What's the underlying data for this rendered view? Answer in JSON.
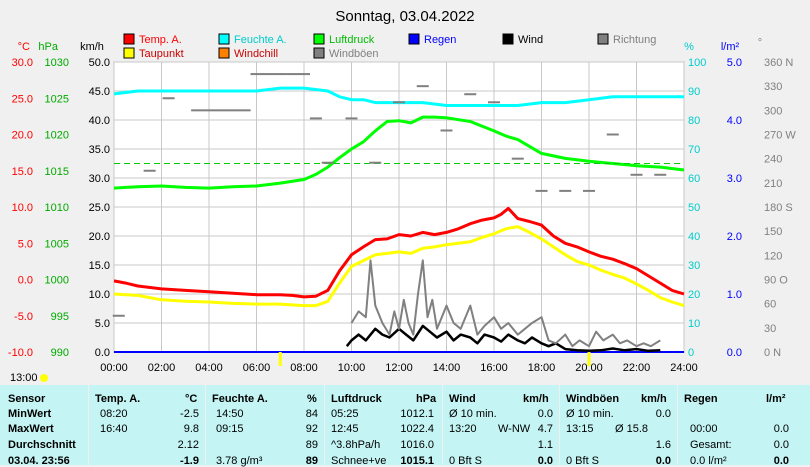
{
  "title": "Sonntag, 03.04.2022",
  "legend": [
    {
      "label": "Temp. A.",
      "color": "#ff0000"
    },
    {
      "label": "Feuchte A.",
      "color": "#00ffff"
    },
    {
      "label": "Luftdruck",
      "color": "#00ff00"
    },
    {
      "label": "Regen",
      "color": "#0000ff"
    },
    {
      "label": "Wind",
      "color": "#000000"
    },
    {
      "label": "Richtung",
      "color": "#808080"
    },
    {
      "label": "Taupunkt",
      "color": "#ffff00"
    },
    {
      "label": "Windchill",
      "color": "#ff8000"
    },
    {
      "label": "Windböen",
      "color": "#808080"
    }
  ],
  "axes": {
    "temp": {
      "unit": "°C",
      "ticks": [
        "30.0",
        "25.0",
        "20.0",
        "15.0",
        "10.0",
        "5.0",
        "0.0",
        "-5.0",
        "-10.0"
      ],
      "color": "#ff0000"
    },
    "pressure": {
      "unit": "hPa",
      "ticks": [
        "1030",
        "1025",
        "1020",
        "1015",
        "1010",
        "1005",
        "1000",
        "995",
        "990"
      ],
      "color": "#00aa00"
    },
    "wind": {
      "unit": "km/h",
      "ticks": [
        "50.0",
        "45.0",
        "40.0",
        "35.0",
        "30.0",
        "25.0",
        "20.0",
        "15.0",
        "10.0",
        "5.0",
        "0.0"
      ],
      "color": "#000000"
    },
    "humidity": {
      "unit": "%",
      "ticks": [
        "100",
        "90",
        "80",
        "70",
        "60",
        "50",
        "40",
        "30",
        "20",
        "10",
        "0"
      ],
      "color": "#00cccc"
    },
    "rain": {
      "unit": "l/m²",
      "ticks": [
        "5.0",
        "4.0",
        "3.0",
        "2.0",
        "1.0",
        "0.0"
      ],
      "color": "#0000ff"
    },
    "direction": {
      "unit": "°",
      "ticks": [
        "360 N",
        "330",
        "300",
        "270 W",
        "240",
        "210",
        "180 S",
        "150",
        "120",
        "90 O",
        "60",
        "30",
        "0 N"
      ],
      "color": "#808080"
    },
    "time": [
      "00:00",
      "02:00",
      "04:00",
      "06:00",
      "08:00",
      "10:00",
      "12:00",
      "14:00",
      "16:00",
      "18:00",
      "20:00",
      "22:00",
      "24:00"
    ]
  },
  "sun_marker": "13:00",
  "chart_data": {
    "type": "line",
    "title": "Sonntag, 03.04.2022",
    "x_unit": "hour",
    "xlim": [
      0,
      24
    ],
    "series": [
      {
        "name": "Temp. A.",
        "axis": "temp",
        "color": "#ff0000",
        "x": [
          0,
          0.5,
          1,
          2,
          3,
          4,
          5,
          6,
          7,
          7.5,
          8,
          8.5,
          9,
          9.5,
          10,
          10.5,
          11,
          11.5,
          12,
          12.5,
          13,
          13.5,
          14,
          14.5,
          15,
          15.5,
          16,
          16.3,
          16.6,
          17,
          17.5,
          18,
          18.5,
          19,
          19.5,
          20,
          20.5,
          21,
          21.5,
          22,
          22.5,
          23,
          23.5,
          24
        ],
        "y": [
          -0.2,
          -0.5,
          -0.9,
          -1.3,
          -1.5,
          -1.7,
          -1.9,
          -2.1,
          -2.1,
          -2.2,
          -2.4,
          -2.3,
          -1.5,
          1.2,
          3.4,
          4.5,
          5.5,
          5.6,
          6.2,
          6.0,
          6.5,
          6.2,
          6.5,
          7.0,
          7.7,
          8.2,
          8.5,
          9.0,
          9.8,
          8.4,
          8.0,
          7.5,
          6.0,
          5.0,
          4.5,
          3.8,
          3.2,
          2.8,
          2.2,
          1.5,
          0.5,
          -0.5,
          -1.5,
          -2.0
        ]
      },
      {
        "name": "Taupunkt",
        "axis": "temp",
        "color": "#ffff00",
        "x": [
          0,
          1,
          2,
          3,
          4,
          5,
          6,
          7,
          8,
          8.5,
          9,
          9.5,
          10,
          10.5,
          11,
          11.5,
          12,
          12.5,
          13,
          13.5,
          14,
          14.5,
          15,
          15.5,
          16,
          16.5,
          17,
          17.5,
          18,
          18.5,
          19,
          19.5,
          20,
          20.5,
          21,
          21.5,
          22,
          22.5,
          23,
          23.5,
          24
        ],
        "y": [
          -2.0,
          -2.2,
          -2.8,
          -3.0,
          -3.1,
          -3.3,
          -3.4,
          -3.4,
          -3.6,
          -3.6,
          -3.0,
          -0.5,
          1.8,
          2.6,
          3.4,
          3.6,
          3.8,
          3.6,
          4.3,
          4.5,
          4.8,
          5.0,
          5.2,
          5.8,
          6.3,
          7.0,
          7.3,
          6.5,
          5.6,
          4.5,
          3.4,
          2.5,
          2.0,
          1.3,
          0.7,
          0.2,
          -0.6,
          -1.5,
          -2.5,
          -3.1,
          -3.6
        ]
      },
      {
        "name": "Feuchte A.",
        "axis": "humidity",
        "color": "#00ffff",
        "x": [
          0,
          1,
          2,
          3,
          4,
          5,
          6,
          7,
          8,
          9,
          9.5,
          10,
          10.5,
          11,
          12,
          13,
          14,
          15,
          16,
          17,
          18,
          19,
          20,
          21,
          22,
          23,
          24
        ],
        "y": [
          89,
          90,
          90,
          90,
          90,
          90,
          90,
          91,
          91,
          90,
          88,
          87,
          87,
          86,
          86,
          86,
          85,
          85,
          85,
          85,
          86,
          86,
          87,
          88,
          88,
          88,
          88
        ]
      },
      {
        "name": "Luftdruck",
        "axis": "pressure",
        "color": "#00ff00",
        "x": [
          0,
          1,
          2,
          3,
          4,
          5,
          6,
          7,
          8,
          8.5,
          9,
          9.5,
          10,
          10.5,
          11,
          11.5,
          12,
          12.5,
          13,
          13.5,
          14,
          15,
          16,
          16.5,
          17,
          18,
          19,
          20,
          21,
          22,
          23,
          24
        ],
        "y": [
          1012.6,
          1012.8,
          1012.9,
          1012.7,
          1012.6,
          1012.8,
          1012.9,
          1013.3,
          1013.8,
          1014.5,
          1015.5,
          1016.8,
          1018.0,
          1019.0,
          1020.5,
          1021.8,
          1021.9,
          1021.6,
          1022.4,
          1022.4,
          1022.3,
          1021.8,
          1020.5,
          1019.8,
          1019.3,
          1017.4,
          1016.7,
          1016.3,
          1016.0,
          1015.7,
          1015.5,
          1015.1
        ]
      },
      {
        "name": "Luftdruck Durchschnitt",
        "axis": "pressure",
        "color": "#00cc00",
        "dashed": true,
        "x": [
          0,
          24
        ],
        "y": [
          1016.0,
          1016.0
        ]
      },
      {
        "name": "Regen",
        "axis": "rain",
        "color": "#0000ff",
        "x": [
          0,
          24
        ],
        "y": [
          0.0,
          0.0
        ]
      },
      {
        "name": "Wind",
        "axis": "wind",
        "color": "#000000",
        "x": [
          9.8,
          10,
          10.3,
          10.6,
          11,
          11.3,
          11.6,
          12,
          12.3,
          12.6,
          13,
          13.3,
          13.6,
          14,
          14.3,
          14.6,
          15,
          15.3,
          15.6,
          16,
          16.3,
          16.6,
          17,
          17.3,
          17.6,
          18,
          18.3,
          18.6,
          19,
          19.5,
          20,
          20.5,
          21,
          21.5,
          22,
          22.5,
          23
        ],
        "y": [
          1.0,
          2.0,
          3.0,
          2.0,
          4.0,
          3.0,
          2.5,
          4.0,
          3.0,
          2.0,
          4.5,
          3.5,
          2.5,
          3.5,
          2.0,
          3.0,
          2.5,
          1.5,
          3.0,
          2.5,
          1.8,
          3.0,
          2.0,
          1.5,
          2.5,
          1.5,
          1.0,
          1.5,
          0.5,
          0.3,
          0.2,
          0.3,
          0.6,
          0.3,
          0.5,
          0.2,
          0.3
        ]
      },
      {
        "name": "Windböen",
        "axis": "wind",
        "color": "#808080",
        "x": [
          10,
          10.3,
          10.6,
          10.8,
          11,
          11.3,
          11.6,
          11.8,
          12,
          12.2,
          12.4,
          12.6,
          12.8,
          13,
          13.2,
          13.4,
          13.6,
          13.8,
          14,
          14.3,
          14.6,
          15,
          15.3,
          15.6,
          16,
          16.3,
          16.6,
          17,
          17.3,
          17.6,
          18,
          18.3,
          18.6,
          19,
          19.3,
          19.6,
          20,
          20.3,
          20.6,
          21,
          21.3,
          21.6,
          22,
          22.3,
          22.6,
          23
        ],
        "y": [
          5.0,
          7.0,
          6.0,
          15.8,
          8.0,
          5.0,
          3.0,
          7.0,
          4.0,
          9.0,
          5.0,
          3.0,
          10.0,
          15.8,
          6.0,
          9.0,
          4.0,
          6.0,
          8.0,
          5.0,
          4.0,
          8.0,
          3.0,
          4.5,
          6.0,
          4.0,
          5.0,
          3.0,
          4.0,
          5.0,
          6.0,
          2.0,
          1.5,
          3.0,
          1.0,
          2.0,
          1.0,
          3.5,
          2.0,
          3.0,
          1.5,
          2.0,
          1.0,
          1.5,
          1.0,
          2.0
        ]
      },
      {
        "name": "Richtung",
        "axis": "direction",
        "color": "#808080",
        "markers": true,
        "x": [
          0.2,
          1.5,
          2.3,
          3.5,
          4.0,
          4.5,
          5.0,
          5.5,
          6.0,
          6.5,
          7.0,
          7.5,
          8.0,
          8.5,
          9.0,
          10.0,
          11.0,
          12.0,
          13.0,
          14.0,
          15.0,
          16.0,
          17.0,
          18.0,
          19.0,
          20.0,
          21.0,
          22.0,
          23.0
        ],
        "y": [
          45,
          225,
          315,
          300,
          300,
          300,
          300,
          300,
          345,
          345,
          345,
          345,
          345,
          290,
          235,
          290,
          235,
          310,
          330,
          275,
          320,
          310,
          240,
          200,
          200,
          200,
          270,
          220,
          220
        ]
      }
    ],
    "ylim_temp": [
      -10,
      30
    ],
    "ylim_pressure": [
      990,
      1030
    ],
    "ylim_wind": [
      0,
      50
    ],
    "ylim_humidity": [
      0,
      100
    ],
    "ylim_rain": [
      0,
      5
    ],
    "ylim_direction": [
      0,
      360
    ]
  },
  "stats": {
    "headers": {
      "sensor": "Sensor",
      "temp": {
        "label": "Temp. A.",
        "unit": "°C"
      },
      "hum": {
        "label": "Feuchte A.",
        "unit": "%"
      },
      "press": {
        "label": "Luftdruck",
        "unit": "hPa"
      },
      "wind": {
        "label": "Wind",
        "unit": "km/h"
      },
      "gust": {
        "label": "Windböen",
        "unit": "km/h"
      },
      "rain": {
        "label": "Regen",
        "unit": "l/m²"
      }
    },
    "rows": [
      {
        "label": "MinWert",
        "temp_t": "08:20",
        "temp_v": "-2.5",
        "hum_t": "14:50",
        "hum_v": "84",
        "press_t": "05:25",
        "press_v": "1012.1",
        "wind_t": "Ø 10 min.",
        "wind_v": "0.0",
        "gust_t": "Ø 10 min.",
        "gust_v": "0.0",
        "rain_t": "",
        "rain_v": ""
      },
      {
        "label": "MaxWert",
        "temp_t": "16:40",
        "temp_v": "9.8",
        "hum_t": "09:15",
        "hum_v": "92",
        "press_t": "12:45",
        "press_v": "1022.4",
        "wind_t": "13:20",
        "wind_d": "W-NW",
        "wind_v": "4.7",
        "gust_t": "13:15",
        "gust_d": "Ø 15.8",
        "gust_v": "",
        "rain_t": "00:00",
        "rain_v": "0.0"
      },
      {
        "label": "Durchschnitt",
        "temp_t": "",
        "temp_v": "2.12",
        "hum_t": "",
        "hum_v": "89",
        "press_t": "^3.8hPa/h",
        "press_v": "1016.0",
        "wind_t": "",
        "wind_v": "1.1",
        "gust_t": "",
        "gust_v": "1.6",
        "rain_t": "Gesamt:",
        "rain_v": "0.0"
      },
      {
        "label": "03.04. 23:56",
        "temp_t": "",
        "temp_v": "-1.9",
        "hum_t": "3.78 g/m³",
        "hum_v": "89",
        "press_t": "Schnee+ve",
        "press_v": "1015.1",
        "wind_t": "0 Bft S",
        "wind_v": "0.0",
        "gust_t": "0 Bft S",
        "gust_v": "0.0",
        "rain_t": "0.0 l/m²",
        "rain_v": "0.0"
      }
    ]
  }
}
